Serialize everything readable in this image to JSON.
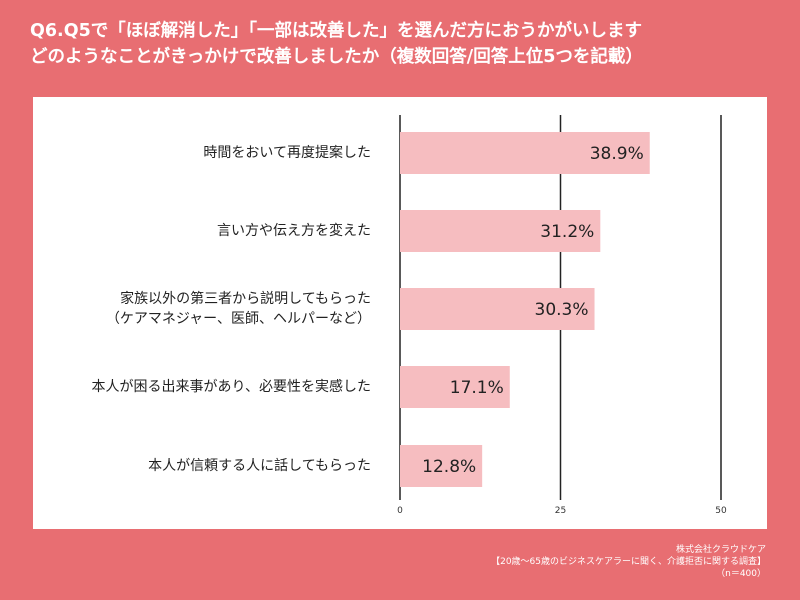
{
  "title": {
    "line1": "Q6.Q5で「ほぼ解消した」「一部は改善した」を選んだ方におうかがいします",
    "line2": "どのようなことがきっかけで改善しましたか（複数回答/回答上位5つを記載）"
  },
  "chart_data": {
    "type": "bar",
    "orientation": "horizontal",
    "categories": [
      [
        "時間をおいて再度提案した"
      ],
      [
        "言い方や伝え方を変えた"
      ],
      [
        "家族以外の第三者から説明してもらった",
        "（ケアマネジャー、医師、ヘルパーなど）"
      ],
      [
        "本人が困る出来事があり、必要性を実感した"
      ],
      [
        "本人が信頼する人に話してもらった"
      ]
    ],
    "values": [
      38.9,
      31.2,
      30.3,
      17.1,
      12.8
    ],
    "value_labels": [
      "38.9%",
      "31.2%",
      "30.3%",
      "17.1%",
      "12.8%"
    ],
    "xlim": [
      0,
      50
    ],
    "xticks": [
      "0",
      "25",
      "50"
    ],
    "grid": true,
    "bar_color": "#F6BDC0"
  },
  "footer": {
    "company": "株式会社クラウドケア",
    "survey": "【20歳〜65歳のビジネスケアラーに聞く、介護拒否に関する調査】",
    "n": "（n＝400）"
  },
  "colors": {
    "background": "#E86E72",
    "panel": "#FFFFFF",
    "bar": "#F6BDC0",
    "axis": "#222222"
  }
}
